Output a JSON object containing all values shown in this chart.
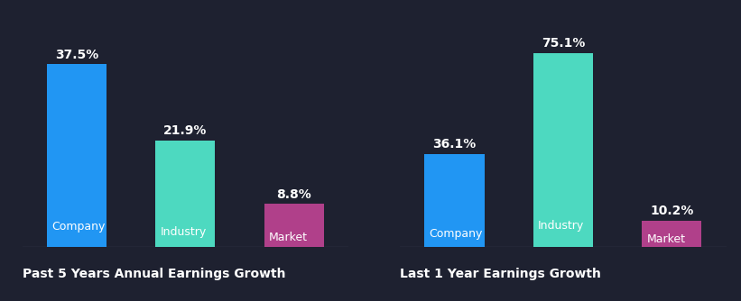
{
  "background_color": "#1e2130",
  "chart1": {
    "title": "Past 5 Years Annual Earnings Growth",
    "categories": [
      "Company",
      "Industry",
      "Market"
    ],
    "values": [
      37.5,
      21.9,
      8.8
    ],
    "colors": [
      "#2196f3",
      "#4dd9c0",
      "#b0408a"
    ]
  },
  "chart2": {
    "title": "Last 1 Year Earnings Growth",
    "categories": [
      "Company",
      "Industry",
      "Market"
    ],
    "values": [
      36.1,
      75.1,
      10.2
    ],
    "colors": [
      "#2196f3",
      "#4dd9c0",
      "#b0408a"
    ]
  },
  "text_color": "#ffffff",
  "title_color": "#ffffff",
  "label_fontsize": 9,
  "value_fontsize": 10,
  "title_fontsize": 10,
  "bar_width": 0.55
}
